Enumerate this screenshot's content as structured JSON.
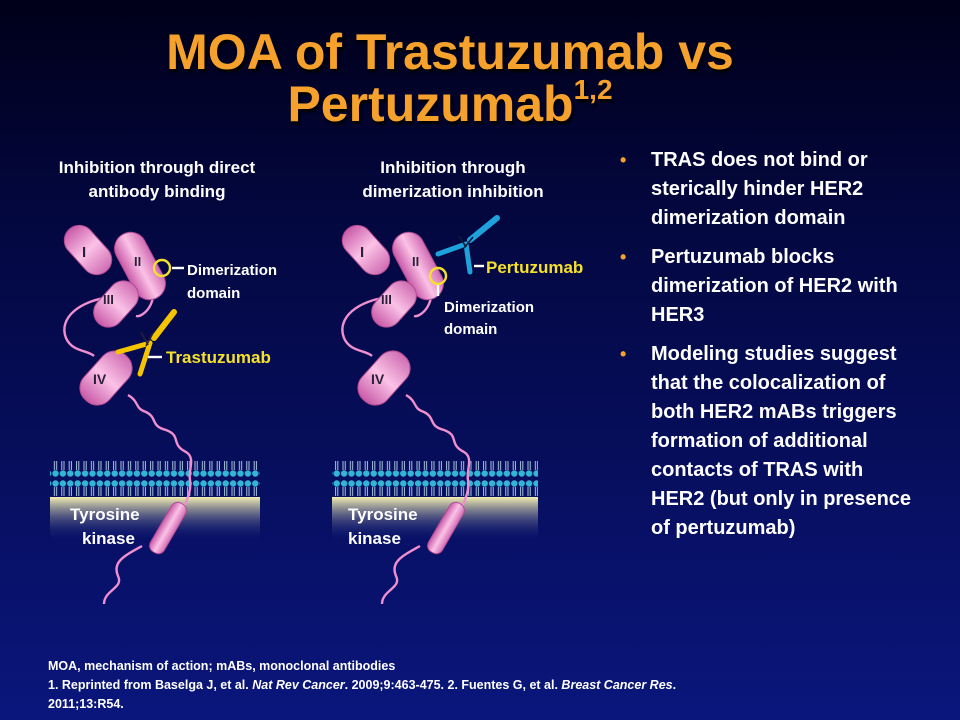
{
  "slide": {
    "title_line1": "MOA of Trastuzumab vs",
    "title_line2": "Pertuzumab",
    "title_superscript": "1,2"
  },
  "left_panel": {
    "heading_line1": "Inhibition through direct",
    "heading_line2": "antibody binding",
    "domain_I": "I",
    "domain_II": "II",
    "domain_III": "III",
    "domain_IV": "IV",
    "dimerization_line1": "Dimerization",
    "dimerization_line2": "domain",
    "antibody_label": "Trastuzumab",
    "kinase_line1": "Tyrosine",
    "kinase_line2": "kinase"
  },
  "right_panel": {
    "heading_line1": "Inhibition through",
    "heading_line2": "dimerization inhibition",
    "domain_I": "I",
    "domain_II": "II",
    "domain_III": "III",
    "domain_IV": "IV",
    "antibody_label": "Pertuzumab",
    "dimerization_line1": "Dimerization",
    "dimerization_line2": "domain",
    "kinase_line1": "Tyrosine",
    "kinase_line2": "kinase"
  },
  "bullets": [
    "TRAS does not bind or sterically hinder HER2 dimerization domain",
    "Pertuzumab blocks dimerization of HER2 with HER3",
    "Modeling studies suggest that the colocalization of both HER2 mABs triggers formation of additional contacts of TRAS with HER2 (but only in presence of pertuzumab)"
  ],
  "footnote": {
    "abbreviations": "MOA, mechanism of action; mABs, monoclonal antibodies",
    "ref1_prefix": "1. Reprinted from Baselga J, et al. ",
    "ref1_journal": "Nat Rev Cancer",
    "ref1_suffix": ". 2009;9:463-475. 2. Fuentes G, et al. ",
    "ref2_journal": "Breast Cancer Res",
    "ref2_suffix": ".",
    "ref2_tail": "2011;13:R54."
  },
  "colors": {
    "title": "#f5a12b",
    "domain_fill": "#f4a6d8",
    "trastuzumab": "#f5c400",
    "pertuzumab": "#1fa2dc",
    "membrane_head": "#33b5d6",
    "bullet": "#f5a12b"
  }
}
